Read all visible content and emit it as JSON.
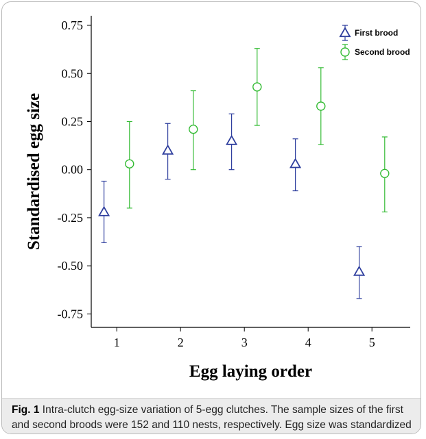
{
  "chart_data": {
    "type": "scatter",
    "xlabel": "Egg laying order",
    "ylabel": "Standardised egg size",
    "xlim": [
      0.6,
      5.6
    ],
    "ylim": [
      -0.82,
      0.8
    ],
    "x_ticks": [
      "1",
      "2",
      "3",
      "4",
      "5"
    ],
    "y_ticks": [
      "0.75",
      "0.50",
      "0.25",
      "0.00",
      "-0.25",
      "-0.50",
      "-0.75"
    ],
    "legend_position": "top-right",
    "series": [
      {
        "name": "First brood",
        "color": "#2f3f9e",
        "marker": "triangle",
        "points": [
          {
            "x": 1,
            "y": -0.22,
            "low": -0.38,
            "high": -0.06
          },
          {
            "x": 2,
            "y": 0.1,
            "low": -0.05,
            "high": 0.24
          },
          {
            "x": 3,
            "y": 0.15,
            "low": 0.0,
            "high": 0.29
          },
          {
            "x": 4,
            "y": 0.03,
            "low": -0.11,
            "high": 0.16
          },
          {
            "x": 5,
            "y": -0.53,
            "low": -0.67,
            "high": -0.4
          }
        ]
      },
      {
        "name": "Second brood",
        "color": "#33bb33",
        "marker": "circle",
        "points": [
          {
            "x": 1,
            "y": 0.03,
            "low": -0.2,
            "high": 0.25
          },
          {
            "x": 2,
            "y": 0.21,
            "low": 0.0,
            "high": 0.41
          },
          {
            "x": 3,
            "y": 0.43,
            "low": 0.23,
            "high": 0.63
          },
          {
            "x": 4,
            "y": 0.33,
            "low": 0.13,
            "high": 0.53
          },
          {
            "x": 5,
            "y": -0.02,
            "low": -0.22,
            "high": 0.17
          }
        ]
      }
    ]
  },
  "caption": {
    "label": "Fig. 1",
    "text": "Intra-clutch egg-size variation of 5-egg clutches. The sample sizes of the first and second broods were 152 and 110 nests, respectively. Egg size was standardized across years"
  }
}
